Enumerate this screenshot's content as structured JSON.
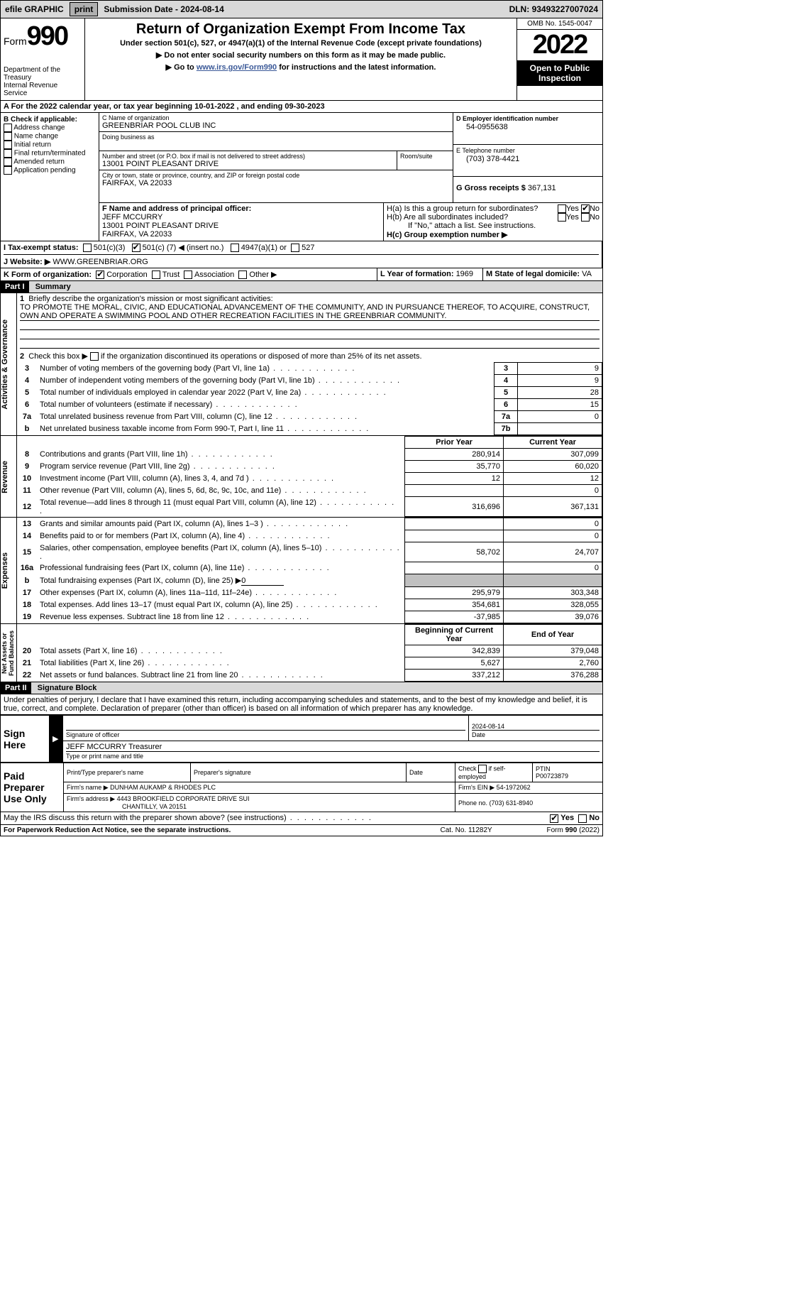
{
  "topbar": {
    "efile": "efile GRAPHIC",
    "print": "print",
    "subdate_label": "Submission Date - ",
    "subdate": "2024-08-14",
    "dln_label": "DLN: ",
    "dln": "93493227007024"
  },
  "header": {
    "form_word": "Form",
    "form_num": "990",
    "dept": "Department of the Treasury\nInternal Revenue Service",
    "title": "Return of Organization Exempt From Income Tax",
    "subtitle": "Under section 501(c), 527, or 4947(a)(1) of the Internal Revenue Code (except private foundations)",
    "note1": "▶ Do not enter social security numbers on this form as it may be made public.",
    "note2_pre": "▶ Go to ",
    "note2_link": "www.irs.gov/Form990",
    "note2_post": " for instructions and the latest information.",
    "omb": "OMB No. 1545-0047",
    "year": "2022",
    "inspect": "Open to Public Inspection"
  },
  "period": {
    "text_pre": "A For the 2022 calendar year, or tax year beginning ",
    "begin": "10-01-2022",
    "mid": "   , and ending ",
    "end": "09-30-2023"
  },
  "boxB": {
    "label": "B Check if applicable:",
    "items": [
      "Address change",
      "Name change",
      "Initial return",
      "Final return/terminated",
      "Amended return",
      "Application pending"
    ]
  },
  "boxC": {
    "name_label": "C Name of organization",
    "name": "GREENBRIAR POOL CLUB INC",
    "dba_label": "Doing business as",
    "addr_label": "Number and street (or P.O. box if mail is not delivered to street address)",
    "room_label": "Room/suite",
    "addr": "13001 POINT PLEASANT DRIVE",
    "city_label": "City or town, state or province, country, and ZIP or foreign postal code",
    "city": "FAIRFAX, VA  22033"
  },
  "boxD": {
    "label": "D Employer identification number",
    "value": "54-0955638"
  },
  "boxE": {
    "label": "E Telephone number",
    "value": "(703) 378-4421"
  },
  "boxG": {
    "label": "G Gross receipts $ ",
    "value": "367,131"
  },
  "boxF": {
    "label": "F  Name and address of principal officer:",
    "name": "JEFF MCCURRY",
    "addr1": "13001 POINT PLEASANT DRIVE",
    "addr2": "FAIRFAX, VA  22033"
  },
  "boxH": {
    "a": "H(a)  Is this a group return for subordinates?",
    "b": "H(b)  Are all subordinates included?",
    "b_note": "If \"No,\" attach a list. See instructions.",
    "c": "H(c)  Group exemption number ▶",
    "yes": "Yes",
    "no": "No"
  },
  "boxI": {
    "label": "I   Tax-exempt status:",
    "c3": "501(c)(3)",
    "c_pre": "501(c) (",
    "c_num": "7",
    "c_post": ") ◀ (insert no.)",
    "a1": "4947(a)(1) or",
    "527": "527"
  },
  "boxJ": {
    "label": "J   Website: ▶ ",
    "value": "WWW.GREENBRIAR.ORG"
  },
  "boxK": {
    "label": "K Form of organization:",
    "corp": "Corporation",
    "trust": "Trust",
    "assoc": "Association",
    "other": "Other ▶"
  },
  "boxL": {
    "label": "L Year of formation: ",
    "value": "1969"
  },
  "boxM": {
    "label": "M State of legal domicile: ",
    "value": "VA"
  },
  "part1": {
    "hdr": "Part I",
    "title": "Summary",
    "l1": "Briefly describe the organization's mission or most significant activities:",
    "l1_text": "TO PROMOTE THE MORAL, CIVIC, AND EDUCATIONAL ADVANCEMENT OF THE COMMUNITY, AND IN PURSUANCE THEREOF, TO ACQUIRE, CONSTRUCT, OWN AND OPERATE A SWIMMING POOL AND OTHER RECREATION FACILITIES IN THE GREENBRIAR COMMUNITY.",
    "l2": "Check this box ▶       if the organization discontinued its operations or disposed of more than 25% of its net assets.",
    "lines_ag": [
      {
        "n": "3",
        "t": "Number of voting members of the governing body (Part VI, line 1a)",
        "b": "3",
        "v": "9"
      },
      {
        "n": "4",
        "t": "Number of independent voting members of the governing body (Part VI, line 1b)",
        "b": "4",
        "v": "9"
      },
      {
        "n": "5",
        "t": "Total number of individuals employed in calendar year 2022 (Part V, line 2a)",
        "b": "5",
        "v": "28"
      },
      {
        "n": "6",
        "t": "Total number of volunteers (estimate if necessary)",
        "b": "6",
        "v": "15"
      },
      {
        "n": "7a",
        "t": "Total unrelated business revenue from Part VIII, column (C), line 12",
        "b": "7a",
        "v": "0"
      },
      {
        "n": "b",
        "t": "Net unrelated business taxable income from Form 990-T, Part I, line 11",
        "b": "7b",
        "v": ""
      }
    ],
    "col_prior": "Prior Year",
    "col_curr": "Current Year",
    "rev": [
      {
        "n": "8",
        "t": "Contributions and grants (Part VIII, line 1h)",
        "p": "280,914",
        "c": "307,099"
      },
      {
        "n": "9",
        "t": "Program service revenue (Part VIII, line 2g)",
        "p": "35,770",
        "c": "60,020"
      },
      {
        "n": "10",
        "t": "Investment income (Part VIII, column (A), lines 3, 4, and 7d )",
        "p": "12",
        "c": "12"
      },
      {
        "n": "11",
        "t": "Other revenue (Part VIII, column (A), lines 5, 6d, 8c, 9c, 10c, and 11e)",
        "p": "",
        "c": "0"
      },
      {
        "n": "12",
        "t": "Total revenue—add lines 8 through 11 (must equal Part VIII, column (A), line 12)",
        "p": "316,696",
        "c": "367,131"
      }
    ],
    "exp": [
      {
        "n": "13",
        "t": "Grants and similar amounts paid (Part IX, column (A), lines 1–3 )",
        "p": "",
        "c": "0"
      },
      {
        "n": "14",
        "t": "Benefits paid to or for members (Part IX, column (A), line 4)",
        "p": "",
        "c": "0"
      },
      {
        "n": "15",
        "t": "Salaries, other compensation, employee benefits (Part IX, column (A), lines 5–10)",
        "p": "58,702",
        "c": "24,707"
      },
      {
        "n": "16a",
        "t": "Professional fundraising fees (Part IX, column (A), line 11e)",
        "p": "",
        "c": "0"
      }
    ],
    "exp_b": {
      "n": "b",
      "t": "Total fundraising expenses (Part IX, column (D), line 25) ▶",
      "v": "0"
    },
    "exp2": [
      {
        "n": "17",
        "t": "Other expenses (Part IX, column (A), lines 11a–11d, 11f–24e)",
        "p": "295,979",
        "c": "303,348"
      },
      {
        "n": "18",
        "t": "Total expenses. Add lines 13–17 (must equal Part IX, column (A), line 25)",
        "p": "354,681",
        "c": "328,055"
      },
      {
        "n": "19",
        "t": "Revenue less expenses. Subtract line 18 from line 12",
        "p": "-37,985",
        "c": "39,076"
      }
    ],
    "col_boy": "Beginning of Current Year",
    "col_eoy": "End of Year",
    "na": [
      {
        "n": "20",
        "t": "Total assets (Part X, line 16)",
        "p": "342,839",
        "c": "379,048"
      },
      {
        "n": "21",
        "t": "Total liabilities (Part X, line 26)",
        "p": "5,627",
        "c": "2,760"
      },
      {
        "n": "22",
        "t": "Net assets or fund balances. Subtract line 21 from line 20",
        "p": "337,212",
        "c": "376,288"
      }
    ],
    "side_ag": "Activities & Governance",
    "side_rev": "Revenue",
    "side_exp": "Expenses",
    "side_na": "Net Assets or\nFund Balances"
  },
  "part2": {
    "hdr": "Part II",
    "title": "Signature Block",
    "decl": "Under penalties of perjury, I declare that I have examined this return, including accompanying schedules and statements, and to the best of my knowledge and belief, it is true, correct, and complete. Declaration of preparer (other than officer) is based on all information of which preparer has any knowledge.",
    "sign_here": "Sign Here",
    "sig_officer": "Signature of officer",
    "date": "Date",
    "sig_date": "2024-08-14",
    "name_title_val": "JEFF MCCURRY Treasurer",
    "name_title": "Type or print name and title",
    "paid": "Paid Preparer Use Only",
    "prep_name": "Print/Type preparer's name",
    "prep_sig": "Preparer's signature",
    "check_self": "Check        if self-employed",
    "ptin": "PTIN",
    "ptin_v": "P00723879",
    "firm_name": "Firm's name    ▶ ",
    "firm_name_v": "DUNHAM AUKAMP & RHODES PLC",
    "firm_ein": "Firm's EIN ▶ ",
    "firm_ein_v": "54-1972062",
    "firm_addr": "Firm's address ▶ ",
    "firm_addr_v": "4443 BROOKFIELD CORPORATE DRIVE SUI",
    "firm_city": "CHANTILLY, VA  20151",
    "phone": "Phone no. ",
    "phone_v": "(703) 631-8940",
    "discuss": "May the IRS discuss this return with the preparer shown above? (see instructions)",
    "yes": "Yes",
    "no": "No"
  },
  "footer": {
    "pra": "For Paperwork Reduction Act Notice, see the separate instructions.",
    "cat": "Cat. No. 11282Y",
    "form": "Form 990 (2022)"
  }
}
